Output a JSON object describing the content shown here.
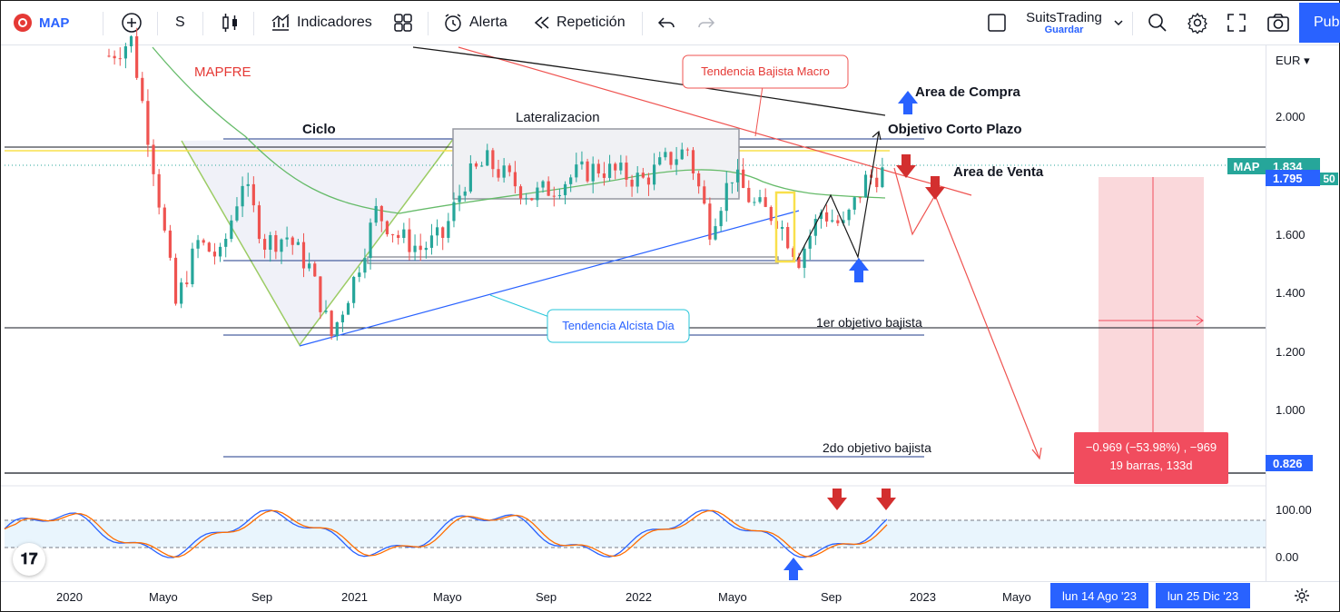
{
  "toolbar": {
    "symbol": "MAP",
    "interval": "S",
    "indicators_label": "Indicadores",
    "alert_label": "Alerta",
    "replay_label": "Repetición",
    "account_name": "SuitsTrading",
    "save_label": "Guardar",
    "publish_label": "Pub",
    "icons": [
      "add-icon",
      "candles-icon",
      "indicators-icon",
      "layout-icon",
      "alert-icon",
      "replay-icon",
      "undo-icon",
      "redo-icon",
      "fullscreen-toggle-icon",
      "search-icon",
      "gear-icon",
      "fullscreen-icon",
      "camera-icon"
    ]
  },
  "price_axis": {
    "currency": "EUR",
    "ticks": [
      "2.000",
      "1.600",
      "1.400",
      "1.200",
      "1.000"
    ],
    "symbol_tag": "MAP",
    "last_price": "1.834",
    "price_tag_2": "1.795",
    "price_tag_2_suffix": "50",
    "low_target_tag": "0.826"
  },
  "oscillator_axis": {
    "ticks": [
      "100.00",
      "0.00"
    ]
  },
  "time_axis": {
    "ticks": [
      "2020",
      "Mayo",
      "Sep",
      "2021",
      "Mayo",
      "Sep",
      "2022",
      "Mayo",
      "Sep",
      "2023",
      "Mayo"
    ],
    "range_start": "lun 14 Ago '23",
    "range_end": "lun 25 Dic '23"
  },
  "annotations": {
    "company": "MAPFRE",
    "macro_trend": "Tendencia Bajista Macro",
    "buy_area": "Area de Compra",
    "short_term_target": "Objetivo Corto Plazo",
    "sell_area": "Area de Venta",
    "cycle": "Ciclo",
    "lateralization": "Lateralizacion",
    "daily_uptrend": "Tendencia Alcista Dia",
    "target_1": "1er objetivo bajista",
    "target_2": "2do objetivo bajista"
  },
  "measure": {
    "change": "−0.969 (−53.98%) , −969",
    "bars": "19 barras, 133d"
  },
  "colors": {
    "up": "#26a69a",
    "down": "#ef5350",
    "ma_green": "#66bb6a",
    "ma_black": "#1a1a1a",
    "accent_blue": "#2962ff",
    "stoch_blue": "#2962ff",
    "stoch_orange": "#ff6d00"
  },
  "chart_data": {
    "type": "candlestick",
    "ylim": [
      0.8,
      2.25
    ],
    "series": [
      {
        "period": "2019-12",
        "close": 2.2
      },
      {
        "period": "2020-01",
        "close": 2.25
      },
      {
        "period": "2020-02",
        "close": 1.85
      },
      {
        "period": "2020-03",
        "close": 1.4
      },
      {
        "period": "2020-04",
        "close": 1.6
      },
      {
        "period": "2020-05",
        "close": 1.55
      },
      {
        "period": "2020-06",
        "close": 1.8
      },
      {
        "period": "2020-07",
        "close": 1.6
      },
      {
        "period": "2020-08",
        "close": 1.62
      },
      {
        "period": "2020-09",
        "close": 1.52
      },
      {
        "period": "2020-10",
        "close": 1.3
      },
      {
        "period": "2020-11",
        "close": 1.48
      },
      {
        "period": "2020-12",
        "close": 1.7
      },
      {
        "period": "2021-01",
        "close": 1.62
      },
      {
        "period": "2021-02",
        "close": 1.58
      },
      {
        "period": "2021-03",
        "close": 1.62
      },
      {
        "period": "2021-04",
        "close": 1.8
      },
      {
        "period": "2021-05",
        "close": 1.86
      },
      {
        "period": "2021-06",
        "close": 1.8
      },
      {
        "period": "2021-07",
        "close": 1.75
      },
      {
        "period": "2021-08",
        "close": 1.78
      },
      {
        "period": "2021-09",
        "close": 1.82
      },
      {
        "period": "2021-10",
        "close": 1.84
      },
      {
        "period": "2021-11",
        "close": 1.82
      },
      {
        "period": "2021-12",
        "close": 1.8
      },
      {
        "period": "2022-01",
        "close": 1.86
      },
      {
        "period": "2022-02",
        "close": 1.9
      },
      {
        "period": "2022-03",
        "close": 1.65
      },
      {
        "period": "2022-04",
        "close": 1.82
      },
      {
        "period": "2022-05",
        "close": 1.72
      },
      {
        "period": "2022-06",
        "close": 1.68
      },
      {
        "period": "2022-07",
        "close": 1.55
      },
      {
        "period": "2022-08",
        "close": 1.7
      },
      {
        "period": "2022-09",
        "close": 1.65
      },
      {
        "period": "2022-10",
        "close": 1.8
      },
      {
        "period": "2022-11",
        "close": 1.834
      }
    ],
    "horizontal_levels": [
      1.88,
      1.515,
      1.28,
      0.86
    ],
    "stochastic": {
      "ylim": [
        0,
        100
      ],
      "levels": [
        80,
        20
      ]
    }
  }
}
